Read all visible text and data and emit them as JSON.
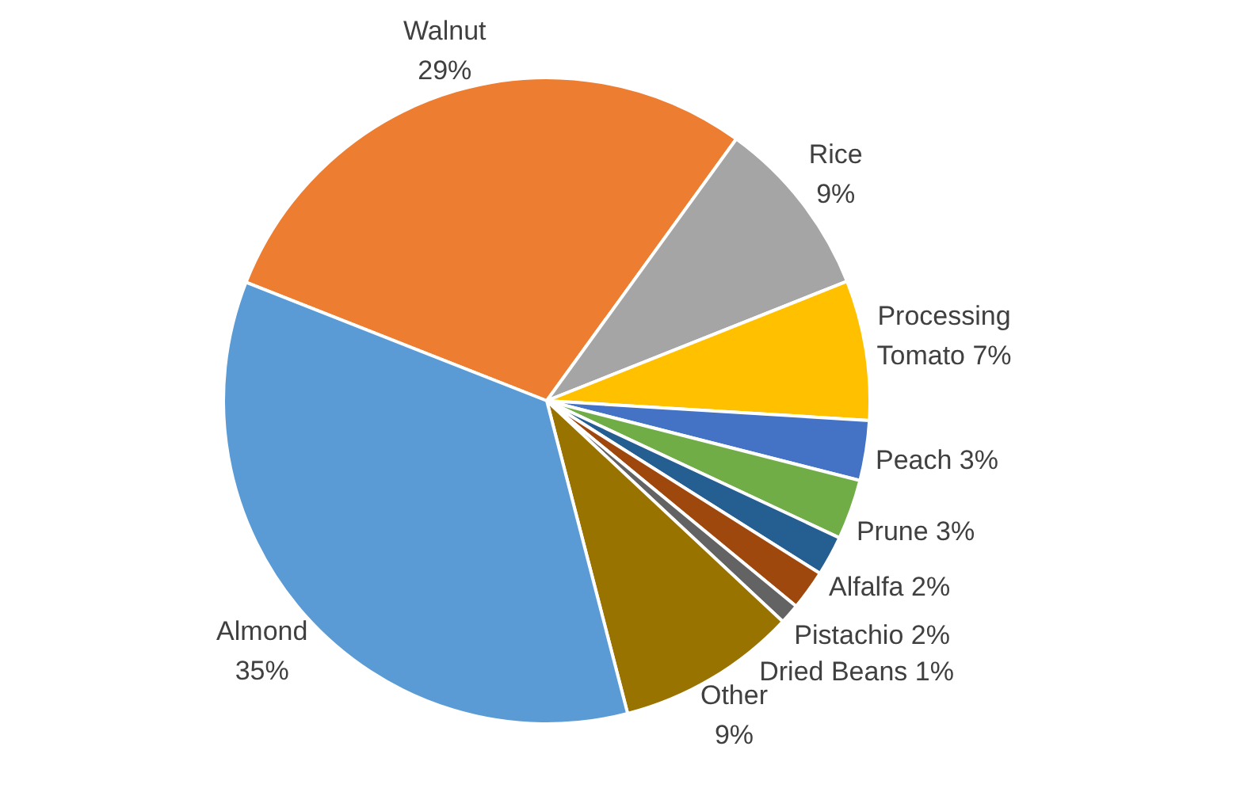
{
  "chart_data": {
    "type": "pie",
    "categories": [
      "Walnut",
      "Rice",
      "Processing Tomato",
      "Peach",
      "Prune",
      "Alfalfa",
      "Pistachio",
      "Dried Beans",
      "Other",
      "Almond"
    ],
    "values": [
      29,
      9,
      7,
      3,
      3,
      2,
      2,
      1,
      9,
      35
    ],
    "value_labels": [
      "29%",
      "9%",
      "7%",
      "3%",
      "3%",
      "2%",
      "2%",
      "1%",
      "9%",
      "35%"
    ],
    "colors": [
      "#ed7d31",
      "#a5a5a5",
      "#ffc000",
      "#4472c4",
      "#70ad47",
      "#255e91",
      "#9e480e",
      "#636363",
      "#997300",
      "#5b9bd5"
    ],
    "legend": false
  }
}
